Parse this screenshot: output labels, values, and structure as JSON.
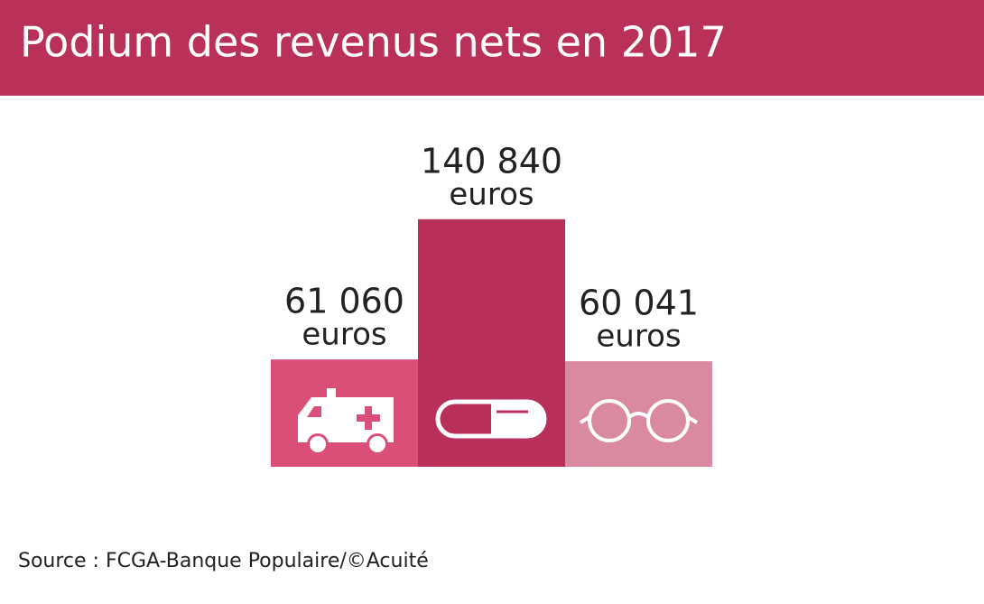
{
  "chart_data": {
    "type": "bar",
    "title": "Podium des revenus nets en 2017",
    "values": [
      61060,
      140840,
      60041
    ],
    "value_labels": [
      "61 060",
      "140 840",
      "60 041"
    ],
    "unit": "euros",
    "colors": [
      "#d94f78",
      "#b8305a",
      "#d98aa0"
    ],
    "ylim": [
      0,
      150000
    ],
    "source": "Source : FCGA-Banque Populaire/©Acuité"
  }
}
